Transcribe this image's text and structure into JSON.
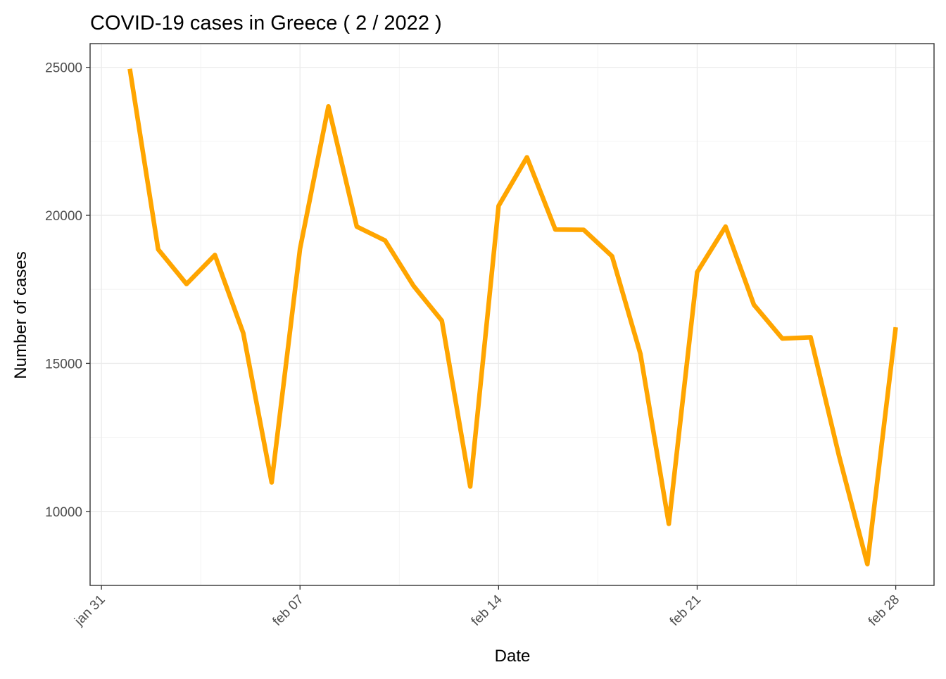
{
  "chart_data": {
    "type": "line",
    "title": "COVID-19 cases in Greece ( 2 / 2022 )",
    "xlabel": "Date",
    "ylabel": "Number of cases",
    "x": [
      "2022-02-01",
      "2022-02-02",
      "2022-02-03",
      "2022-02-04",
      "2022-02-05",
      "2022-02-06",
      "2022-02-07",
      "2022-02-08",
      "2022-02-09",
      "2022-02-10",
      "2022-02-11",
      "2022-02-12",
      "2022-02-13",
      "2022-02-14",
      "2022-02-15",
      "2022-02-16",
      "2022-02-17",
      "2022-02-18",
      "2022-02-19",
      "2022-02-20",
      "2022-02-21",
      "2022-02-22",
      "2022-02-23",
      "2022-02-24",
      "2022-02-25",
      "2022-02-26",
      "2022-02-27",
      "2022-02-28"
    ],
    "series": [
      {
        "values": [
          24950,
          18850,
          17680,
          18660,
          16020,
          10980,
          18870,
          23680,
          19620,
          19150,
          17620,
          16440,
          10840,
          20320,
          21960,
          19520,
          19510,
          18620,
          15320,
          9580,
          18080,
          19620,
          16980,
          15840,
          15880,
          11880,
          8220,
          16220
        ],
        "color": "#FFA500"
      }
    ],
    "xlim": [
      "2022-01-30",
      "2022-02-28"
    ],
    "ylim": [
      7500,
      25800
    ],
    "x_ticks": [
      {
        "date": "2022-01-31",
        "label": "jan 31"
      },
      {
        "date": "2022-02-07",
        "label": "feb 07"
      },
      {
        "date": "2022-02-14",
        "label": "feb 14"
      },
      {
        "date": "2022-02-21",
        "label": "feb 21"
      },
      {
        "date": "2022-02-28",
        "label": "feb 28"
      }
    ],
    "y_ticks": [
      10000,
      15000,
      20000,
      25000
    ],
    "grid": true,
    "legend": "none",
    "theme": "bw"
  }
}
